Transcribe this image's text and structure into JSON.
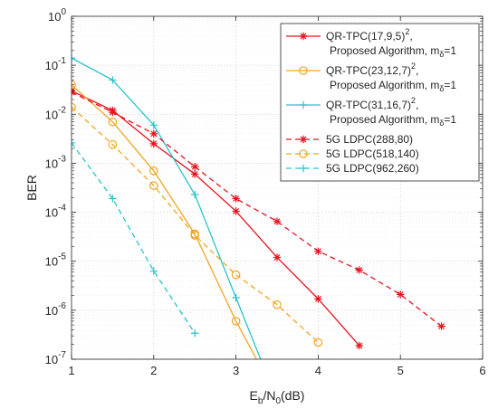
{
  "chart_data": {
    "type": "line",
    "xlabel": "E_b/N_0(dB)",
    "ylabel": "BER",
    "xlim": [
      1,
      6
    ],
    "ylim": [
      1e-07,
      1
    ],
    "yscale": "log",
    "grid": true,
    "legend_position": "top-right",
    "x_ticks": [
      1,
      2,
      3,
      4,
      5,
      6
    ],
    "y_tick_exponents": [
      0,
      -1,
      -2,
      -3,
      -4,
      -5,
      -6,
      -7
    ],
    "series": [
      {
        "name": "QR-TPC(17,9,5)^2, Proposed Algorithm, m_delta=1",
        "legend_lines": [
          {
            "main": "QR-TPC(17,9,5)",
            "sup": "2",
            "after": ","
          },
          {
            "main": "Proposed Algorithm, m",
            "sub": "δ",
            "after": "=1"
          }
        ],
        "color": "#e8131f",
        "dash": "solid",
        "marker": "asterisk",
        "x": [
          1,
          1.5,
          2,
          2.5,
          3,
          3.5,
          4,
          4.5
        ],
        "y": [
          0.03,
          0.012,
          0.0025,
          0.0006,
          0.000105,
          1.2e-05,
          1.7e-06,
          1.9e-07
        ]
      },
      {
        "name": "QR-TPC(23,12,7)^2, Proposed Algorithm, m_delta=1",
        "legend_lines": [
          {
            "main": "QR-TPC(23,12,7)",
            "sup": "2",
            "after": ","
          },
          {
            "main": "Proposed Algorithm, m",
            "sub": "δ",
            "after": "=1"
          }
        ],
        "color": "#f2a51f",
        "dash": "solid",
        "marker": "circle",
        "x": [
          1,
          1.5,
          2,
          2.5,
          3,
          3.25
        ],
        "y": [
          0.04,
          0.007,
          0.0007,
          3.6e-05,
          6e-07,
          1e-07
        ]
      },
      {
        "name": "QR-TPC(31,16,7)^2, Proposed Algorithm, m_delta=1",
        "legend_lines": [
          {
            "main": "QR-TPC(31,16,7)",
            "sup": "2",
            "after": ","
          },
          {
            "main": "Proposed Algorithm, m",
            "sub": "δ",
            "after": "=1"
          }
        ],
        "color": "#27c4cb",
        "dash": "solid",
        "marker": "plus",
        "x": [
          1,
          1.5,
          2,
          2.5,
          3,
          3.3
        ],
        "y": [
          0.14,
          0.05,
          0.006,
          0.00023,
          1.8e-06,
          1e-07
        ]
      },
      {
        "name": "5G LDPC(288,80)",
        "legend_lines": [
          {
            "main": "5G LDPC(288,80)"
          }
        ],
        "color": "#e8131f",
        "dash": "dashed",
        "marker": "asterisk",
        "x": [
          1,
          1.5,
          2,
          2.5,
          3,
          3.5,
          4,
          4.5,
          5,
          5.5
        ],
        "y": [
          0.028,
          0.011,
          0.004,
          0.00085,
          0.00019,
          6.5e-05,
          1.6e-05,
          6.6e-06,
          2.1e-06,
          4.7e-07
        ]
      },
      {
        "name": "5G LDPC(518,140)",
        "legend_lines": [
          {
            "main": "5G LDPC(518,140)"
          }
        ],
        "color": "#f2a51f",
        "dash": "dashed",
        "marker": "circle",
        "x": [
          1,
          1.5,
          2,
          2.5,
          3,
          3.5,
          4
        ],
        "y": [
          0.014,
          0.0024,
          0.00035,
          3.4e-05,
          5.3e-06,
          1.3e-06,
          2.2e-07
        ]
      },
      {
        "name": "5G LDPC(962,260)",
        "legend_lines": [
          {
            "main": "5G LDPC(962,260)"
          }
        ],
        "color": "#27c4cb",
        "dash": "dashed",
        "marker": "plus",
        "x": [
          1,
          1.5,
          2,
          2.5
        ],
        "y": [
          0.0026,
          0.00019,
          6.3e-06,
          3.4e-07
        ]
      }
    ]
  }
}
